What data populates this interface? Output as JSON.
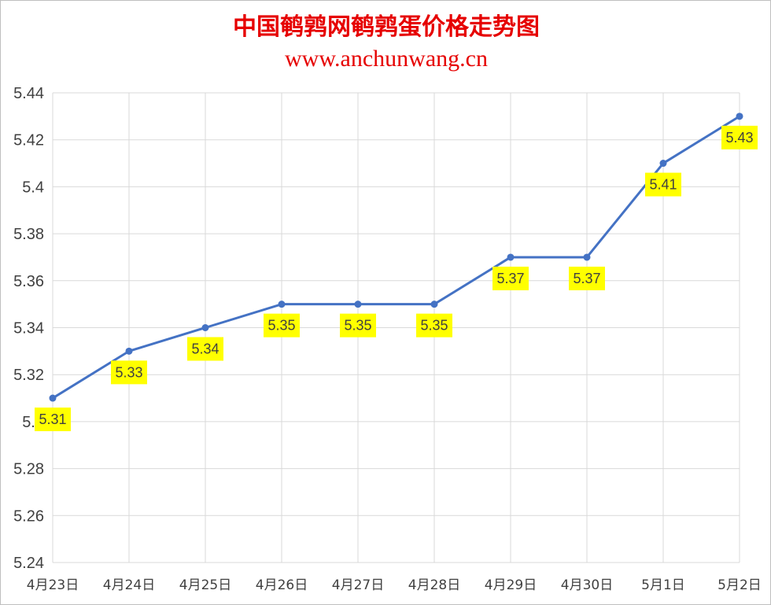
{
  "chart_data": {
    "type": "line",
    "title": "中国鹌鹑网鹌鹑蛋价格走势图",
    "subtitle": "www.anchunwang.cn",
    "categories": [
      "4月23日",
      "4月24日",
      "4月25日",
      "4月26日",
      "4月27日",
      "4月28日",
      "4月29日",
      "4月30日",
      "5月1日",
      "5月2日"
    ],
    "series": [
      {
        "values": [
          5.31,
          5.33,
          5.34,
          5.35,
          5.35,
          5.35,
          5.37,
          5.37,
          5.41,
          5.43
        ]
      }
    ],
    "ylim": [
      5.24,
      5.44
    ],
    "yticks": [
      "5.24",
      "5.26",
      "5.28",
      "5.3",
      "5.32",
      "5.34",
      "5.36",
      "5.38",
      "5.4",
      "5.42",
      "5.44"
    ],
    "xlabel": "",
    "ylabel": "",
    "grid": true,
    "legend": "none",
    "colors": {
      "line": "#4472c4",
      "marker": "#4472c4",
      "label_bg": "#ffff00",
      "title": "#e60000",
      "grid": "#d9d9d9"
    }
  }
}
